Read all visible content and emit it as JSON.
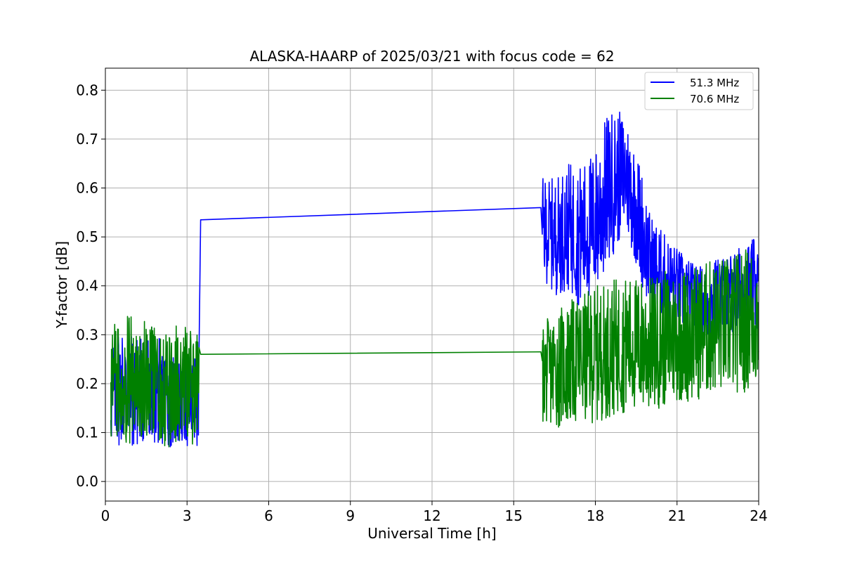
{
  "chart_data": {
    "type": "line",
    "title": "ALASKA-HAARP of 2025/03/21 with focus code = 62",
    "xlabel": "Universal Time [h]",
    "ylabel": "Y-factor [dB]",
    "xlim": [
      0,
      24
    ],
    "ylim": [
      -0.04,
      0.845
    ],
    "x_ticks": [
      0,
      3,
      6,
      9,
      12,
      15,
      18,
      21,
      24
    ],
    "y_ticks": [
      0.0,
      0.1,
      0.2,
      0.3,
      0.4,
      0.5,
      0.6,
      0.7,
      0.8
    ],
    "x_tick_labels": [
      "0",
      "3",
      "6",
      "9",
      "12",
      "15",
      "18",
      "21",
      "24"
    ],
    "y_tick_labels": [
      "0.0",
      "0.1",
      "0.2",
      "0.3",
      "0.4",
      "0.5",
      "0.6",
      "0.7",
      "0.8"
    ],
    "grid": true,
    "legend_position": "top-right",
    "series": [
      {
        "name": "51.3 MHz",
        "color": "#0000ff",
        "x": [
          0.2,
          0.5,
          0.8,
          1.1,
          1.4,
          1.7,
          2.0,
          2.3,
          2.6,
          2.9,
          3.2,
          3.45,
          3.5,
          16.0,
          16.05,
          16.5,
          17.0,
          17.5,
          18.0,
          18.2,
          18.5,
          18.8,
          19.1,
          19.4,
          19.7,
          20.0,
          20.5,
          21.0,
          21.5,
          22.0,
          22.5,
          23.0,
          23.5,
          24.0
        ],
        "values": [
          0.18,
          0.2,
          0.19,
          0.18,
          0.19,
          0.2,
          0.18,
          0.17,
          0.16,
          0.17,
          0.16,
          0.18,
          0.535,
          0.56,
          0.52,
          0.5,
          0.52,
          0.5,
          0.53,
          0.56,
          0.6,
          0.62,
          0.63,
          0.58,
          0.52,
          0.45,
          0.42,
          0.4,
          0.37,
          0.36,
          0.37,
          0.38,
          0.39,
          0.4
        ],
        "amplitude": [
          0.12,
          0.13,
          0.12,
          0.12,
          0.12,
          0.12,
          0.11,
          0.1,
          0.09,
          0.1,
          0.1,
          0.11,
          0,
          0,
          0.1,
          0.12,
          0.13,
          0.15,
          0.15,
          0.16,
          0.16,
          0.14,
          0.12,
          0.12,
          0.12,
          0.1,
          0.09,
          0.08,
          0.08,
          0.08,
          0.09,
          0.09,
          0.1,
          0.1
        ]
      },
      {
        "name": "70.6 MHz",
        "color": "#008000",
        "x": [
          0.2,
          0.5,
          0.8,
          1.1,
          1.4,
          1.7,
          2.0,
          2.3,
          2.6,
          2.9,
          3.2,
          3.45,
          3.5,
          16.0,
          16.05,
          16.5,
          17.0,
          17.5,
          18.0,
          18.5,
          19.0,
          19.5,
          20.0,
          20.5,
          21.0,
          21.5,
          22.0,
          22.5,
          23.0,
          23.5,
          24.0
        ],
        "values": [
          0.2,
          0.21,
          0.22,
          0.2,
          0.21,
          0.2,
          0.19,
          0.18,
          0.2,
          0.21,
          0.19,
          0.2,
          0.26,
          0.265,
          0.22,
          0.23,
          0.24,
          0.25,
          0.26,
          0.27,
          0.28,
          0.28,
          0.28,
          0.29,
          0.3,
          0.3,
          0.31,
          0.32,
          0.32,
          0.33,
          0.34
        ],
        "amplitude": [
          0.12,
          0.13,
          0.14,
          0.13,
          0.12,
          0.12,
          0.11,
          0.12,
          0.12,
          0.12,
          0.12,
          0.1,
          0,
          0,
          0.1,
          0.12,
          0.13,
          0.13,
          0.14,
          0.14,
          0.14,
          0.14,
          0.14,
          0.14,
          0.14,
          0.14,
          0.14,
          0.14,
          0.14,
          0.15,
          0.15
        ]
      }
    ]
  }
}
